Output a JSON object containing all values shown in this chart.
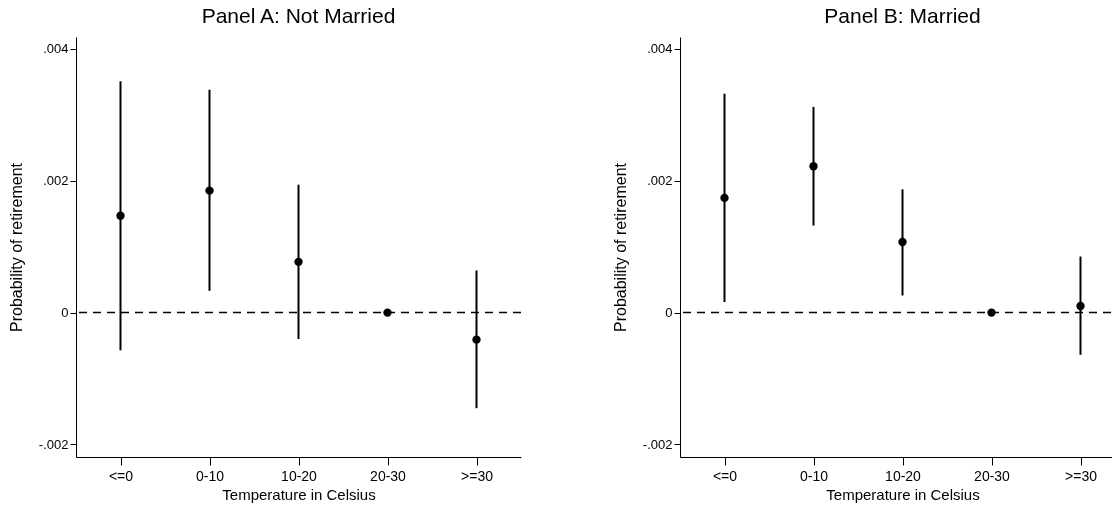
{
  "chart_data": [
    {
      "type": "scatter",
      "title": "Panel A: Not Married",
      "xlabel": "Temperature in Celsius",
      "ylabel": "Probability of retirement",
      "categories": [
        "<=0",
        "0-10",
        "10-20",
        "20-30",
        ">=30"
      ],
      "values": [
        0.00147,
        0.00185,
        0.00077,
        0,
        -0.00041
      ],
      "errors": [
        [
          -0.00057,
          0.00351
        ],
        [
          0.00033,
          0.00338
        ],
        [
          -0.0004,
          0.00194
        ],
        null,
        [
          -0.00145,
          0.00064
        ]
      ],
      "color": "#000000",
      "marker": "circle",
      "ylim": [
        -0.00219,
        0.00418
      ],
      "yticks": [
        {
          "value": -0.002,
          "label": "-.002"
        },
        0,
        {
          "value": 0.002,
          "label": ".002"
        },
        {
          "value": 0.004,
          "label": ".004"
        }
      ],
      "ref_lines": [
        {
          "axis": "y",
          "value": 0,
          "line_style": "dashed",
          "color": "#000000"
        }
      ],
      "grid": false
    },
    {
      "type": "scatter",
      "title": "Panel B: Married",
      "xlabel": "Temperature in Celsius",
      "ylabel": "Probability of retirement",
      "categories": [
        "<=0",
        "0-10",
        "10-20",
        "20-30",
        ">=30"
      ],
      "values": [
        0.00174,
        0.00222,
        0.00107,
        0,
        0.0001
      ],
      "errors": [
        [
          0.00016,
          0.00332
        ],
        [
          0.00132,
          0.00312
        ],
        [
          0.00026,
          0.00187
        ],
        null,
        [
          -0.00064,
          0.00085
        ]
      ],
      "color": "#000000",
      "marker": "circle",
      "ylim": [
        -0.00219,
        0.00418
      ],
      "yticks": [
        {
          "value": -0.002,
          "label": "-.002"
        },
        0,
        {
          "value": 0.002,
          "label": ".002"
        },
        {
          "value": 0.004,
          "label": ".004"
        }
      ],
      "ref_lines": [
        {
          "axis": "y",
          "value": 0,
          "line_style": "dashed",
          "color": "#000000"
        }
      ],
      "grid": false
    }
  ]
}
